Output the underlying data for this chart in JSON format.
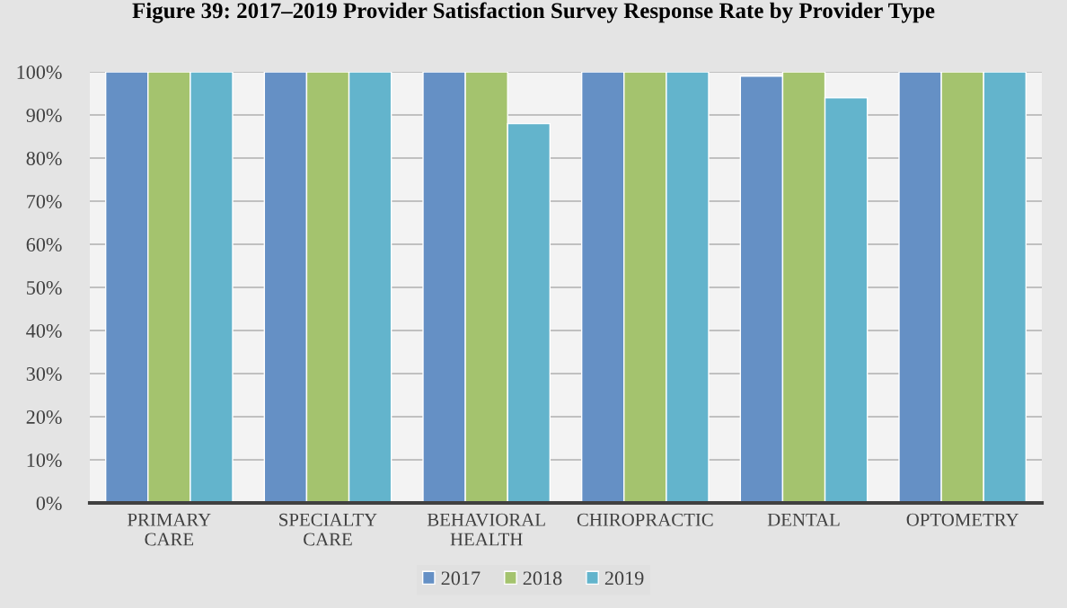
{
  "chart_data": {
    "type": "bar",
    "title": "Figure 39: 2017–2019 Provider Satisfaction Survey Response Rate by Provider Type",
    "categories": [
      "PRIMARY\nCARE",
      "SPECIALTY\nCARE",
      "BEHAVIORAL\nHEALTH",
      "CHIROPRACTIC",
      "DENTAL",
      "OPTOMETRY"
    ],
    "series": [
      {
        "name": "2017",
        "color": "#6590c5",
        "values": [
          100,
          100,
          100,
          100,
          99,
          100
        ]
      },
      {
        "name": "2018",
        "color": "#a4c36e",
        "values": [
          100,
          100,
          100,
          100,
          100,
          100
        ]
      },
      {
        "name": "2019",
        "color": "#63b4cc",
        "values": [
          100,
          100,
          88,
          100,
          94,
          100
        ]
      }
    ],
    "ylim": [
      0,
      100
    ],
    "yticks": [
      {
        "value": 0,
        "label": "0%"
      },
      {
        "value": 10,
        "label": "10%"
      },
      {
        "value": 20,
        "label": "20%"
      },
      {
        "value": 30,
        "label": "30%"
      },
      {
        "value": 40,
        "label": "40%"
      },
      {
        "value": 50,
        "label": "50%"
      },
      {
        "value": 60,
        "label": "60%"
      },
      {
        "value": 70,
        "label": "70%"
      },
      {
        "value": 80,
        "label": "80%"
      },
      {
        "value": 90,
        "label": "90%"
      },
      {
        "value": 100,
        "label": "100%"
      }
    ],
    "grid": "y",
    "legend": "bottom"
  }
}
